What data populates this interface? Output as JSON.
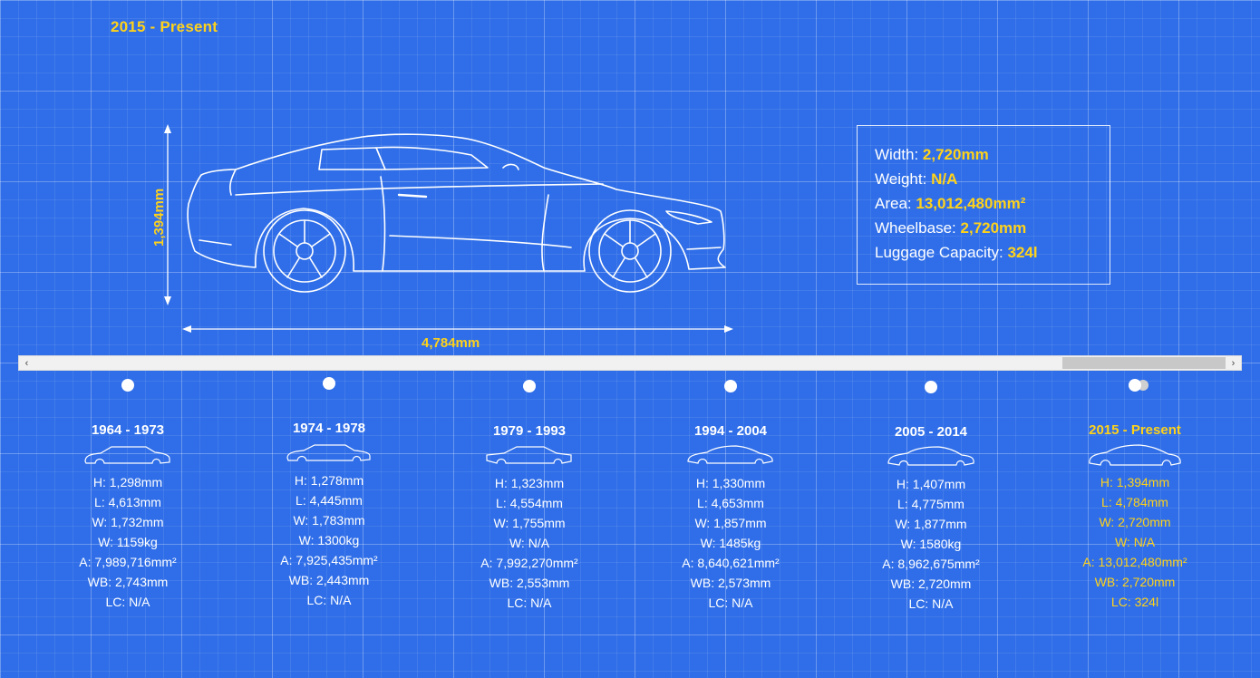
{
  "header": {
    "title": "2015 - Present"
  },
  "diagram": {
    "height_label": "1,394mm",
    "length_label": "4,784mm"
  },
  "specs": {
    "width_label": "Width:",
    "width_value": "2,720mm",
    "weight_label": "Weight:",
    "weight_value": "N/A",
    "area_label": "Area:",
    "area_value": "13,012,480mm²",
    "wheelbase_label": "Wheelbase:",
    "wheelbase_value": "2,720mm",
    "luggage_label": "Luggage Capacity:",
    "luggage_value": "324l"
  },
  "scrollbar": {
    "left_arrow": "‹",
    "right_arrow": "›"
  },
  "generations": [
    {
      "years": "1964 - 1973",
      "h": "H: 1,298mm",
      "l": "L: 4,613mm",
      "w": "W: 1,732mm",
      "wt": "W: 1159kg",
      "a": "A: 7,989,716mm²",
      "wb": "WB: 2,743mm",
      "lc": "LC: N/A"
    },
    {
      "years": "1974 - 1978",
      "h": "H: 1,278mm",
      "l": "L: 4,445mm",
      "w": "W: 1,783mm",
      "wt": "W: 1300kg",
      "a": "A: 7,925,435mm²",
      "wb": "WB: 2,443mm",
      "lc": "LC: N/A"
    },
    {
      "years": "1979 - 1993",
      "h": "H: 1,323mm",
      "l": "L: 4,554mm",
      "w": "W: 1,755mm",
      "wt": "W: N/A",
      "a": "A: 7,992,270mm²",
      "wb": "WB: 2,553mm",
      "lc": "LC: N/A"
    },
    {
      "years": "1994 - 2004",
      "h": "H: 1,330mm",
      "l": "L: 4,653mm",
      "w": "W: 1,857mm",
      "wt": "W: 1485kg",
      "a": "A: 8,640,621mm²",
      "wb": "WB: 2,573mm",
      "lc": "LC: N/A"
    },
    {
      "years": "2005 - 2014",
      "h": "H: 1,407mm",
      "l": "L: 4,775mm",
      "w": "W: 1,877mm",
      "wt": "W: 1580kg",
      "a": "A: 8,962,675mm²",
      "wb": "WB: 2,720mm",
      "lc": "LC: N/A"
    },
    {
      "years": "2015 - Present",
      "h": "H: 1,394mm",
      "l": "L: 4,784mm",
      "w": "W: 2,720mm",
      "wt": "W: N/A",
      "a": "A: 13,012,480mm²",
      "wb": "WB: 2,720mm",
      "lc": "LC: 324l"
    }
  ],
  "colors": {
    "background": "#2f6ee8",
    "accent": "#ffd21a",
    "line": "#ffffff"
  },
  "icons": {
    "gen_car": "car-silhouette-icon",
    "main_car": "car-blueprint-icon"
  }
}
